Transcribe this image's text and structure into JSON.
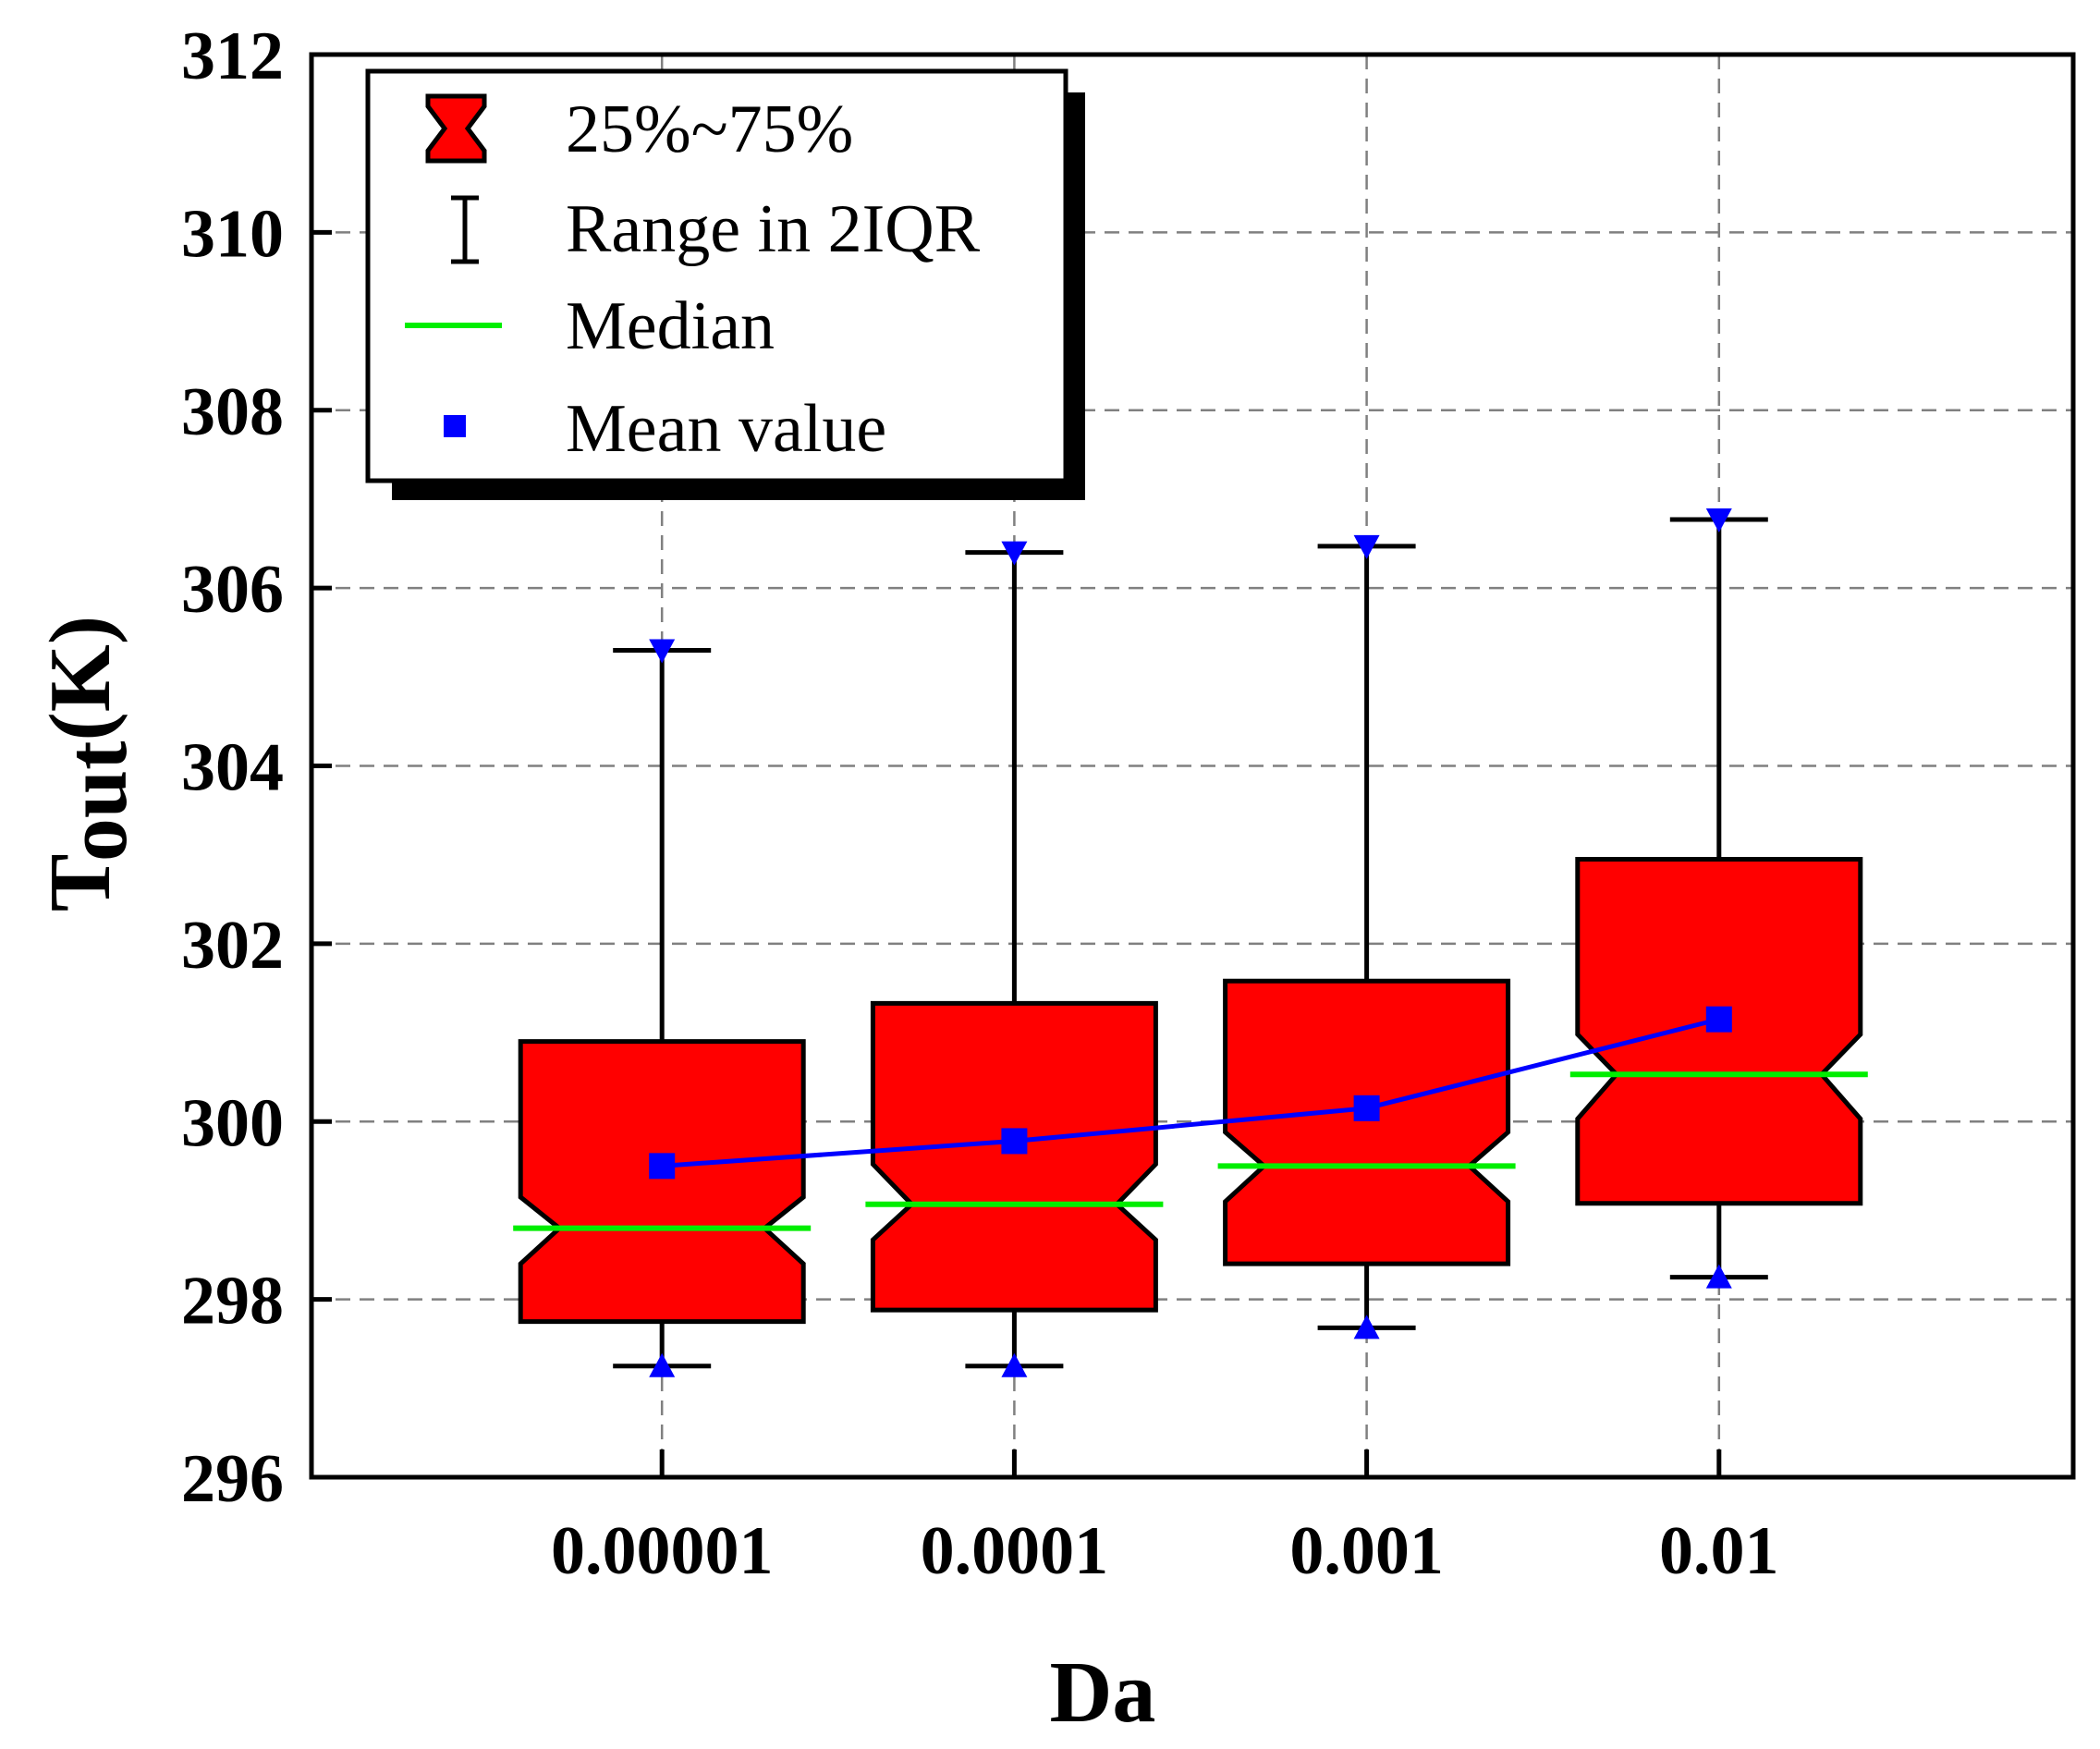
{
  "chart_data": {
    "type": "box",
    "xlabel": "Da",
    "ylabel_main": "T",
    "ylabel_sub": "out",
    "ylabel_unit": "(K)",
    "categories": [
      "0.00001",
      "0.0001",
      "0.001",
      "0.01"
    ],
    "ylim": [
      296,
      312
    ],
    "yticks": [
      296,
      298,
      300,
      302,
      304,
      306,
      308,
      310,
      312
    ],
    "grid": true,
    "boxes": [
      {
        "whisker_low": 297.25,
        "q1": 297.75,
        "notch_low": 298.4,
        "median": 298.8,
        "notch_high": 299.15,
        "q3": 300.9,
        "whisker_high": 305.3,
        "mean": 299.5
      },
      {
        "whisker_low": 297.25,
        "q1": 297.88,
        "notch_low": 298.67,
        "median": 299.07,
        "notch_high": 299.52,
        "q3": 301.33,
        "whisker_high": 306.4,
        "mean": 299.78
      },
      {
        "whisker_low": 297.68,
        "q1": 298.4,
        "notch_low": 299.1,
        "median": 299.5,
        "notch_high": 299.88,
        "q3": 301.58,
        "whisker_high": 306.47,
        "mean": 300.15
      },
      {
        "whisker_low": 298.25,
        "q1": 299.08,
        "notch_low": 300.03,
        "median": 300.53,
        "notch_high": 300.98,
        "q3": 302.95,
        "whisker_high": 306.77,
        "mean": 301.15
      }
    ],
    "legend": {
      "position": "top-left",
      "entries": [
        "25%~75%",
        "Range in 2IQR",
        "Median",
        "Mean value"
      ]
    },
    "colors": {
      "box_fill": "#ff0000",
      "median": "#00ee00",
      "mean": "#0000ff",
      "grid": "#808080",
      "axis": "#000000"
    }
  }
}
